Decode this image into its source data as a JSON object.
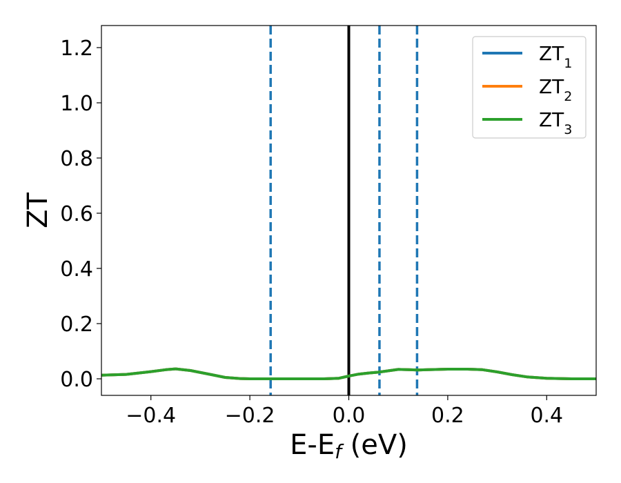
{
  "chart_data": {
    "type": "line",
    "xlabel": {
      "base": "E-E",
      "sub": "f",
      "unit": " (eV)"
    },
    "ylabel": "ZT",
    "xlim": [
      -0.5,
      0.5
    ],
    "ylim": [
      -0.06,
      1.28
    ],
    "x_ticks": [
      -0.4,
      -0.2,
      0.0,
      0.2,
      0.4
    ],
    "x_tick_labels": [
      "−0.4",
      "−0.2",
      "0.0",
      "0.2",
      "0.4"
    ],
    "y_ticks": [
      0.0,
      0.2,
      0.4,
      0.6,
      0.8,
      1.0,
      1.2
    ],
    "y_tick_labels": [
      "0.0",
      "0.2",
      "0.4",
      "0.6",
      "0.8",
      "1.0",
      "1.2"
    ],
    "grid": false,
    "legend_position": "top-right",
    "x": [
      -0.5,
      -0.45,
      -0.4,
      -0.37,
      -0.35,
      -0.32,
      -0.28,
      -0.25,
      -0.22,
      -0.2,
      -0.15,
      -0.1,
      -0.05,
      -0.02,
      0.0,
      0.02,
      0.04,
      0.06,
      0.08,
      0.1,
      0.12,
      0.14,
      0.16,
      0.2,
      0.24,
      0.27,
      0.3,
      0.33,
      0.36,
      0.4,
      0.45,
      0.5
    ],
    "series": [
      {
        "name": "ZT",
        "sub": "1",
        "color": "#1f77b4",
        "values": [
          0.013,
          0.016,
          0.026,
          0.033,
          0.036,
          0.03,
          0.016,
          0.005,
          0.001,
          0.0,
          0.0,
          0.0,
          0.0,
          0.002,
          0.01,
          0.017,
          0.021,
          0.024,
          0.029,
          0.034,
          0.033,
          0.032,
          0.033,
          0.035,
          0.035,
          0.033,
          0.025,
          0.015,
          0.007,
          0.002,
          0.0,
          0.0
        ]
      },
      {
        "name": "ZT",
        "sub": "2",
        "color": "#ff7f0e",
        "values": [
          0.013,
          0.016,
          0.026,
          0.033,
          0.036,
          0.03,
          0.016,
          0.005,
          0.001,
          0.0,
          0.0,
          0.0,
          0.0,
          0.002,
          0.01,
          0.017,
          0.021,
          0.024,
          0.029,
          0.034,
          0.033,
          0.032,
          0.033,
          0.035,
          0.035,
          0.033,
          0.025,
          0.015,
          0.007,
          0.002,
          0.0,
          0.0
        ]
      },
      {
        "name": "ZT",
        "sub": "3",
        "color": "#2ca02c",
        "values": [
          0.013,
          0.016,
          0.026,
          0.033,
          0.036,
          0.03,
          0.016,
          0.005,
          0.001,
          0.0,
          0.0,
          0.0,
          0.0,
          0.002,
          0.01,
          0.017,
          0.021,
          0.024,
          0.029,
          0.034,
          0.033,
          0.032,
          0.033,
          0.035,
          0.035,
          0.033,
          0.025,
          0.015,
          0.007,
          0.002,
          0.0,
          0.0
        ]
      }
    ],
    "vertical_lines": [
      {
        "x": 0.0,
        "style": "solid",
        "color": "#000000"
      },
      {
        "x": -0.158,
        "style": "dashed",
        "color": "#1f77b4"
      },
      {
        "x": 0.062,
        "style": "dashed",
        "color": "#1f77b4"
      },
      {
        "x": 0.138,
        "style": "dashed",
        "color": "#1f77b4"
      }
    ]
  }
}
